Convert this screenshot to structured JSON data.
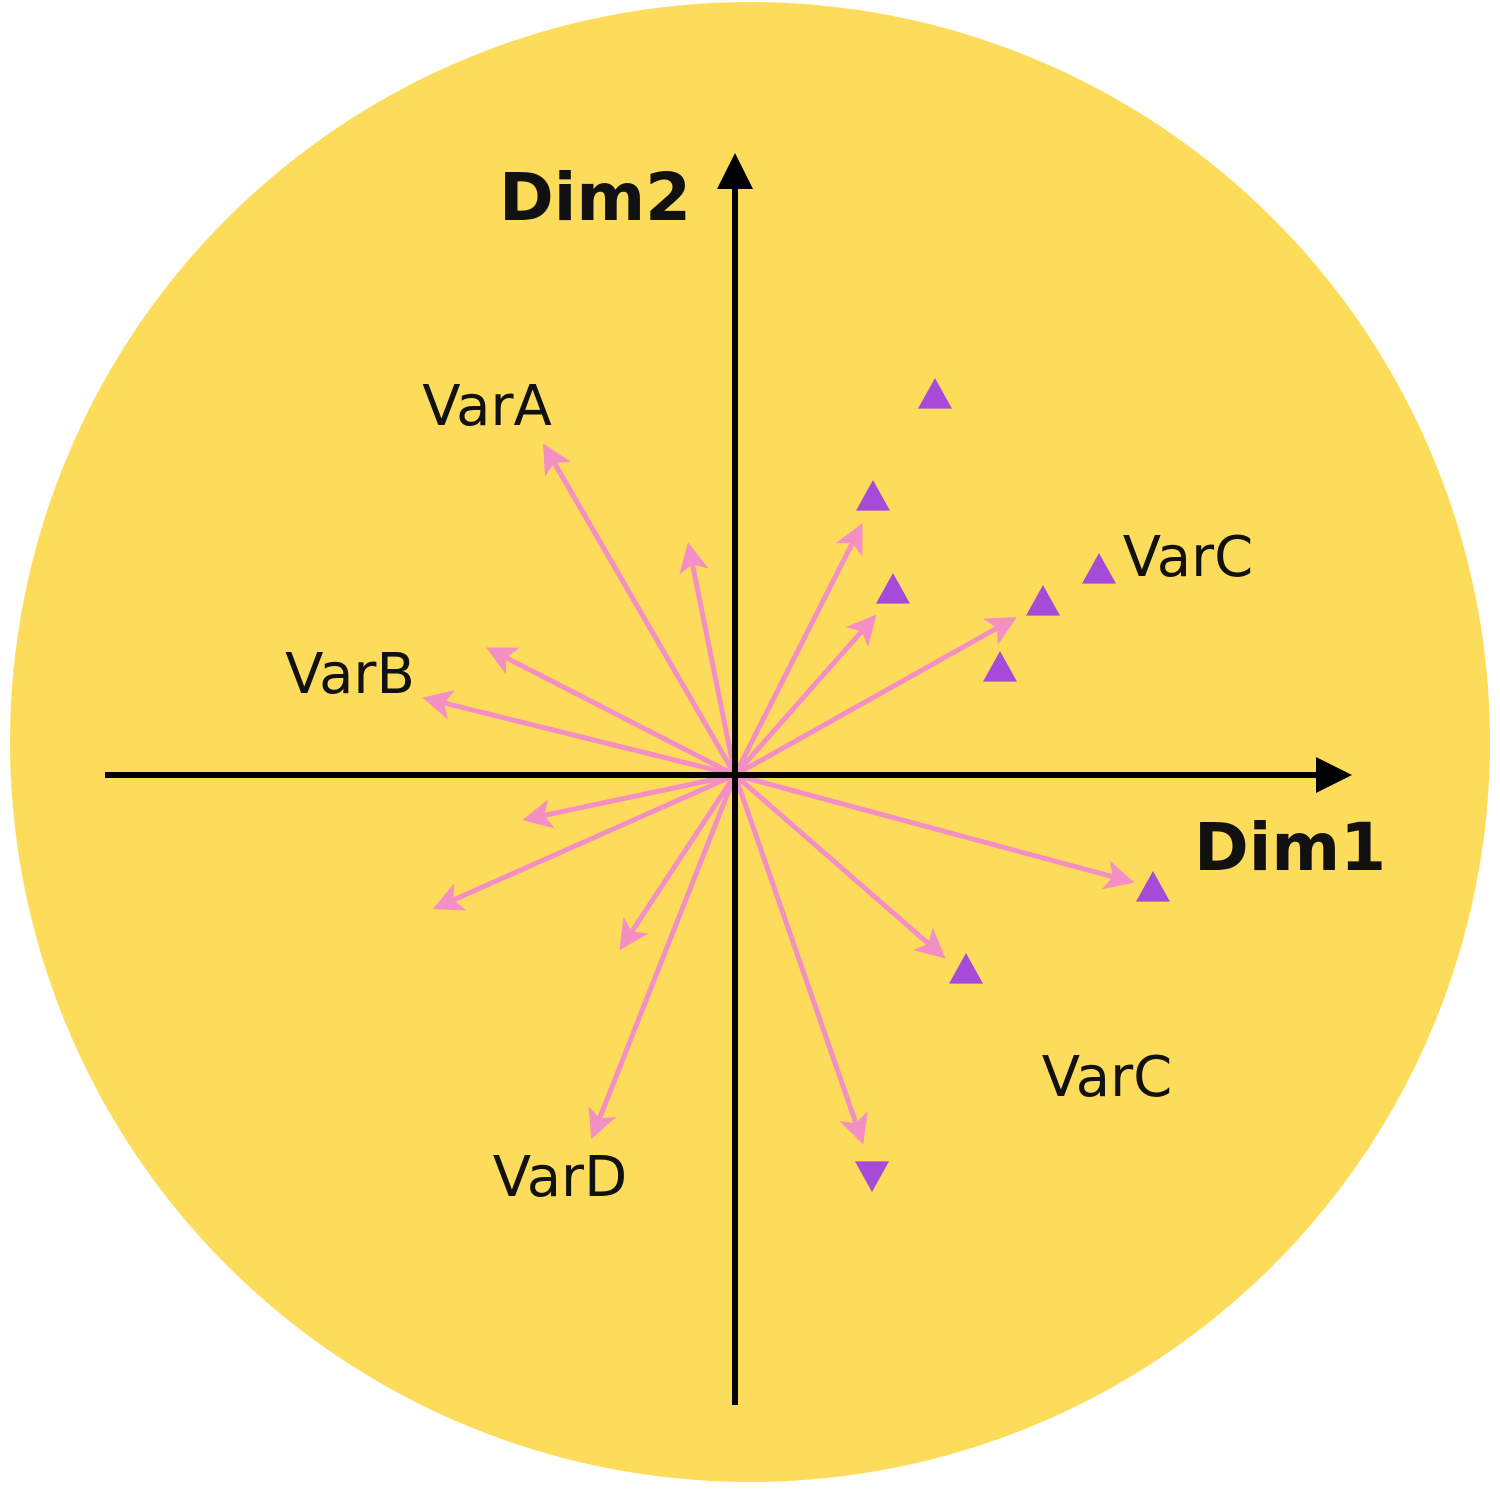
{
  "colors": {
    "background": "#fddc5c",
    "axis": "#000000",
    "arrow": "#f48fc4",
    "marker": "#a64ad8"
  },
  "axes": {
    "x_label": "Dim1",
    "y_label": "Dim2"
  },
  "labels": {
    "var_a": "VarA",
    "var_b": "VarB",
    "var_c_upper": "VarC",
    "var_c_lower": "VarC",
    "var_d": "VarD"
  }
}
